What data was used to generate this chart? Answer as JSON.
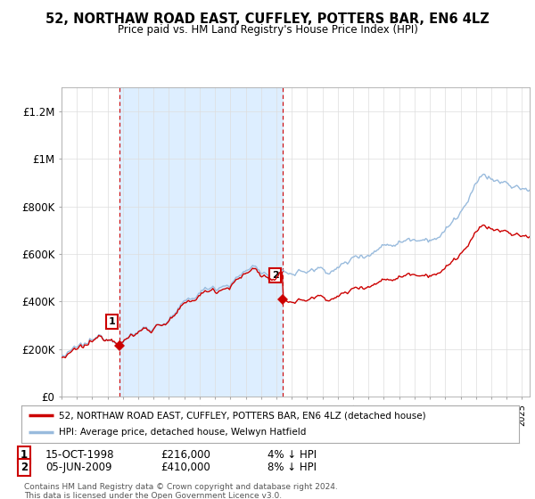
{
  "title": "52, NORTHAW ROAD EAST, CUFFLEY, POTTERS BAR, EN6 4LZ",
  "subtitle": "Price paid vs. HM Land Registry's House Price Index (HPI)",
  "ylabel_ticks": [
    "£0",
    "£200K",
    "£400K",
    "£600K",
    "£800K",
    "£1M",
    "£1.2M"
  ],
  "ytick_values": [
    0,
    200000,
    400000,
    600000,
    800000,
    1000000,
    1200000
  ],
  "ylim": [
    0,
    1300000
  ],
  "xlim_start": 1995.0,
  "xlim_end": 2025.5,
  "purchase1_date": 1998.79,
  "purchase1_price": 216000,
  "purchase2_date": 2009.43,
  "purchase2_price": 410000,
  "legend1_label": "52, NORTHAW ROAD EAST, CUFFLEY, POTTERS BAR, EN6 4LZ (detached house)",
  "legend2_label": "HPI: Average price, detached house, Welwyn Hatfield",
  "table_row1": [
    "1",
    "15-OCT-1998",
    "£216,000",
    "4% ↓ HPI"
  ],
  "table_row2": [
    "2",
    "05-JUN-2009",
    "£410,000",
    "8% ↓ HPI"
  ],
  "footer": "Contains HM Land Registry data © Crown copyright and database right 2024.\nThis data is licensed under the Open Government Licence v3.0.",
  "line_color_property": "#cc0000",
  "line_color_hpi": "#99bbdd",
  "shade_color": "#ddeeff",
  "vline_color": "#cc0000",
  "background_color": "#ffffff",
  "grid_color": "#dddddd"
}
